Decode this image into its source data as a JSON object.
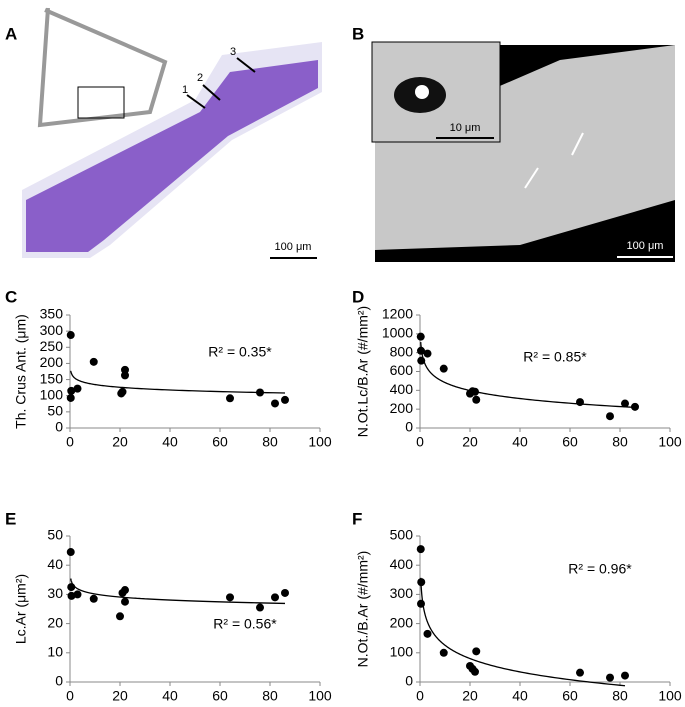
{
  "panels": [
    {
      "label": "A",
      "arrows": [
        "1",
        "2",
        "3"
      ],
      "scale_bar": "100 μm"
    },
    {
      "label": "B",
      "scale_bar": "100 μm",
      "inset_scale_bar": "10 μm"
    }
  ],
  "chart_data": [
    {
      "type": "scatter",
      "label": "C",
      "ylabel": "Th. Crus Ant. (μm)",
      "annotation": "R² = 0.35*",
      "x": [
        0.3,
        0.3,
        0.5,
        3,
        9.5,
        20.5,
        21,
        22,
        22,
        64,
        76,
        82,
        86
      ],
      "values": [
        288,
        93,
        115,
        122,
        205,
        107,
        112,
        180,
        163,
        92,
        110,
        76,
        87
      ],
      "xlim": [
        0,
        100
      ],
      "xticks": [
        0,
        20,
        40,
        60,
        80,
        100
      ],
      "ylim": [
        0,
        350
      ],
      "yticks": [
        0,
        50,
        100,
        150,
        200,
        250,
        300,
        350
      ],
      "color": "#000000",
      "trendline": "logarithmic"
    },
    {
      "type": "scatter",
      "label": "D",
      "ylabel": "N.Ot.Lc/B.Ar (#/mm²)",
      "annotation": "R² = 0.85*",
      "x": [
        0.3,
        0.4,
        0.5,
        3,
        9.5,
        20,
        21,
        22,
        22.5,
        64,
        76,
        82,
        86
      ],
      "values": [
        970,
        820,
        715,
        790,
        630,
        365,
        390,
        385,
        300,
        275,
        125,
        260,
        225
      ],
      "xlim": [
        0,
        100
      ],
      "xticks": [
        0,
        20,
        40,
        60,
        80,
        100
      ],
      "ylim": [
        0,
        1200
      ],
      "yticks": [
        0,
        200,
        400,
        600,
        800,
        1000,
        1200
      ],
      "color": "#000000",
      "trendline": "logarithmic"
    },
    {
      "type": "scatter",
      "label": "E",
      "ylabel": "Lc.Ar (μm²)",
      "annotation": "R² = 0.56*",
      "x": [
        0.3,
        0.5,
        0.6,
        3,
        9.5,
        20,
        21,
        22,
        22,
        64,
        76,
        82,
        86
      ],
      "values": [
        44.5,
        32.5,
        29.5,
        30,
        28.5,
        22.5,
        30.5,
        31.5,
        27.5,
        29,
        25.5,
        29,
        30.5
      ],
      "xlim": [
        0,
        100
      ],
      "xticks": [
        0,
        20,
        40,
        60,
        80,
        100
      ],
      "ylim": [
        0,
        50
      ],
      "yticks": [
        0,
        10,
        20,
        30,
        40,
        50
      ],
      "color": "#000000",
      "trendline": "logarithmic"
    },
    {
      "type": "scatter",
      "label": "F",
      "ylabel": "N.Ot./B.Ar (#/mm²)",
      "annotation": "R² = 0.96*",
      "x": [
        0.3,
        0.5,
        0.4,
        3,
        9.5,
        20,
        21,
        22,
        22.5,
        64,
        76,
        82
      ],
      "values": [
        455,
        342,
        268,
        165,
        100,
        55,
        45,
        35,
        105,
        32,
        15,
        22
      ],
      "xlim": [
        0,
        100
      ],
      "xticks": [
        0,
        20,
        40,
        60,
        80,
        100
      ],
      "ylim": [
        0,
        500
      ],
      "yticks": [
        0,
        100,
        200,
        300,
        400,
        500
      ],
      "color": "#000000",
      "trendline": "logarithmic"
    }
  ]
}
